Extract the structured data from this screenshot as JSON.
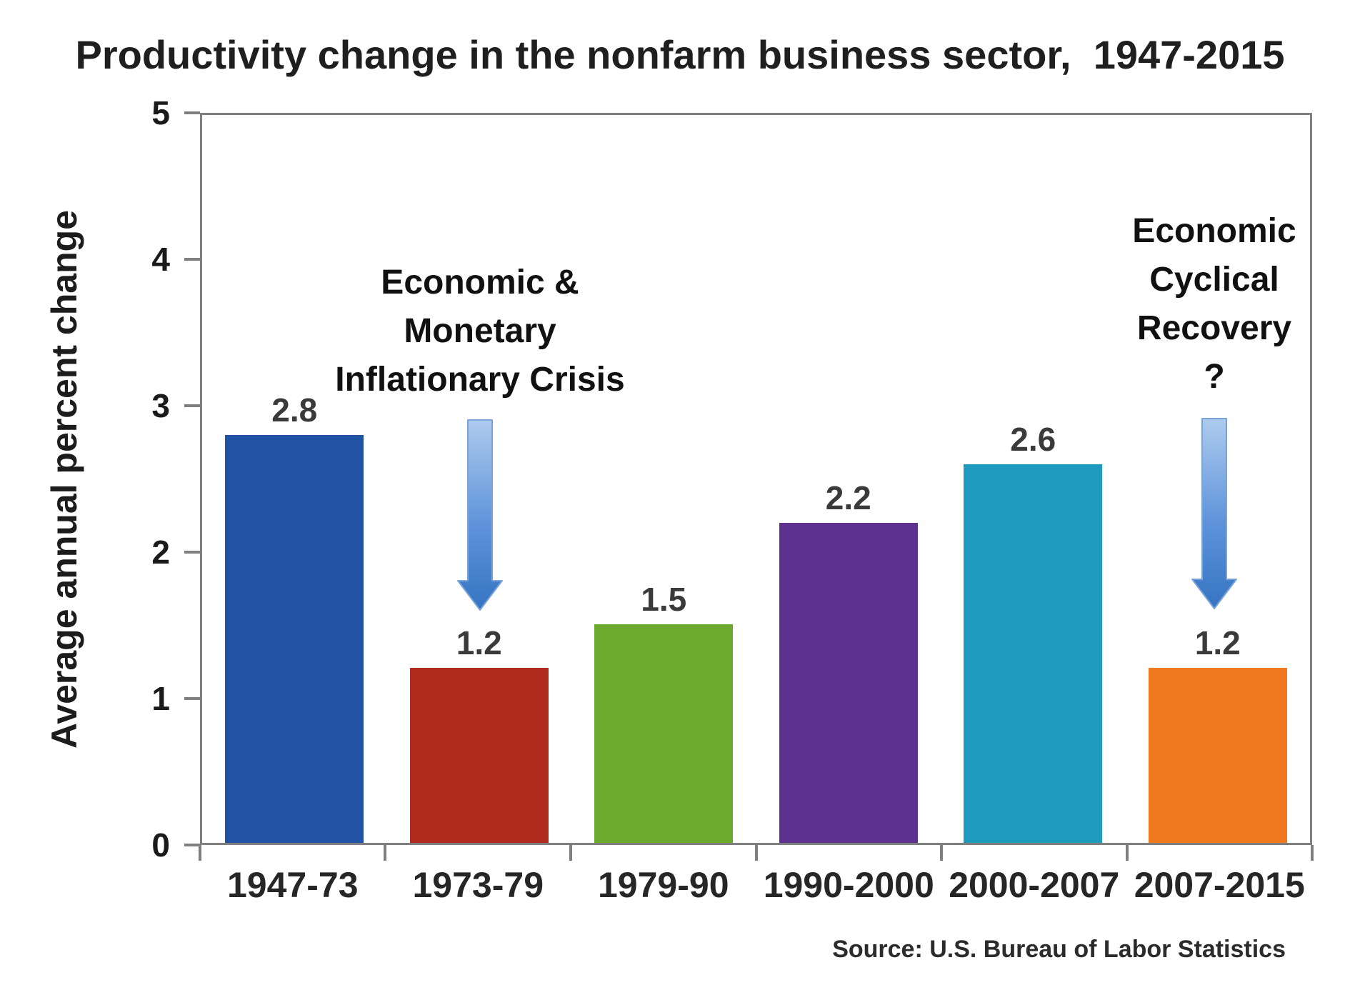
{
  "title": "Productivity change in the nonfarm business sector,  1947-2015",
  "y_axis": {
    "label": "Average annual percent change",
    "tick_values": [
      0,
      1,
      2,
      3,
      4,
      5
    ]
  },
  "chart_data": {
    "type": "bar",
    "title": "Productivity change in the nonfarm business sector, 1947-2015",
    "categories": [
      "1947-73",
      "1973-79",
      "1979-90",
      "1990-2000",
      "2000-2007",
      "2007-2015"
    ],
    "values": [
      2.8,
      1.2,
      1.5,
      2.2,
      2.6,
      1.2
    ],
    "value_labels": [
      "2.8",
      "1.2",
      "1.5",
      "2.2",
      "2.6",
      "1.2"
    ],
    "bar_colors": [
      "#2053A4",
      "#B12A1E",
      "#6CAA2E",
      "#5C3190",
      "#1E9ABF",
      "#F0791F"
    ],
    "xlabel": "",
    "ylabel": "Average annual percent change",
    "ylim": [
      0,
      5
    ],
    "grid": false,
    "legend": "none",
    "annotations": [
      {
        "text": "Economic & Monetary Inflationary Crisis",
        "target_category": "1973-79"
      },
      {
        "text": "Economic Cyclical Recovery ?",
        "target_category": "2007-2015"
      }
    ]
  },
  "annotations": {
    "crisis": {
      "text": "Economic &\nMonetary\nInflationary Crisis"
    },
    "recovery": {
      "text": "Economic\nCyclical\nRecovery\n?"
    }
  },
  "source": "Source: U.S. Bureau of Labor Statistics",
  "colors": {
    "axis": "#7f7f7f",
    "arrow_light": "#AECBEE",
    "arrow_mid": "#5E93DA",
    "arrow_dark": "#3674C2",
    "arrow_stroke": "#7AA4D8",
    "title_text": "#1f1f1f",
    "label_text": "#262626"
  }
}
